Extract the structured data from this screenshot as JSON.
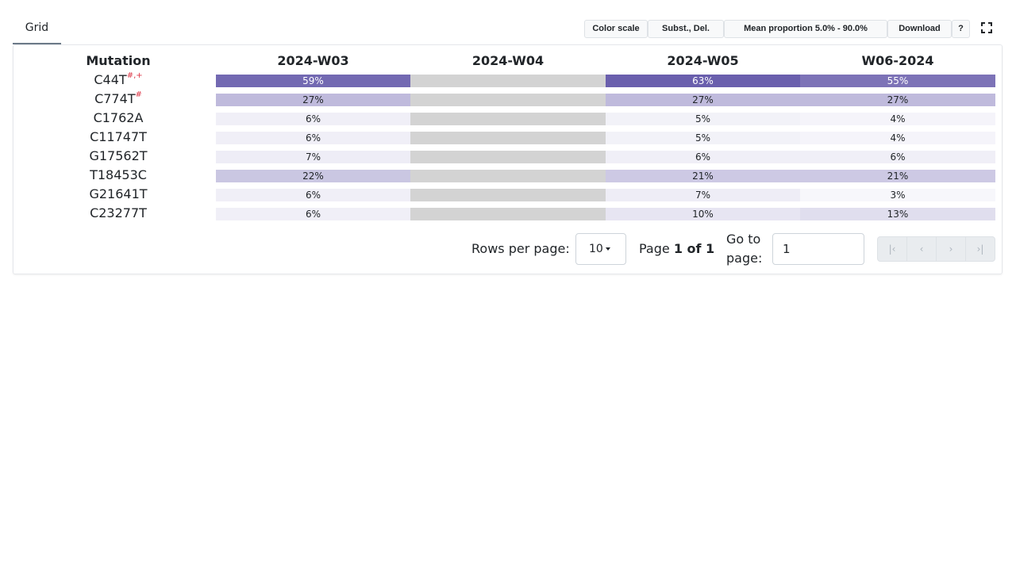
{
  "tabs": [
    {
      "label": "Grid",
      "active": true
    }
  ],
  "toolbar": {
    "color_scale": "Color scale",
    "mutation_types": "Subst., Del.",
    "mean_proportion": "Mean proportion 5.0% - 90.0%",
    "download": "Download",
    "help": "?",
    "fullscreen_icon": "fullscreen-icon"
  },
  "table": {
    "mutation_header": "Mutation",
    "columns": [
      "2024-W03",
      "2024-W04",
      "2024-W05",
      "W06-2024"
    ],
    "rows": [
      {
        "mutation": "C44T",
        "marks": "#,+",
        "cells": [
          "59%",
          null,
          "63%",
          "55%"
        ]
      },
      {
        "mutation": "C774T",
        "marks": "#",
        "cells": [
          "27%",
          null,
          "27%",
          "27%"
        ]
      },
      {
        "mutation": "C1762A",
        "marks": "",
        "cells": [
          "6%",
          null,
          "5%",
          "4%"
        ]
      },
      {
        "mutation": "C11747T",
        "marks": "",
        "cells": [
          "6%",
          null,
          "5%",
          "4%"
        ]
      },
      {
        "mutation": "G17562T",
        "marks": "",
        "cells": [
          "7%",
          null,
          "6%",
          "6%"
        ]
      },
      {
        "mutation": "T18453C",
        "marks": "",
        "cells": [
          "22%",
          null,
          "21%",
          "21%"
        ]
      },
      {
        "mutation": "G21641T",
        "marks": "",
        "cells": [
          "6%",
          null,
          "7%",
          "3%"
        ]
      },
      {
        "mutation": "C23277T",
        "marks": "",
        "cells": [
          "6%",
          null,
          "10%",
          "13%"
        ]
      }
    ]
  },
  "colors": {
    "scale_low": "#f7f7fb",
    "scale_high": "#6a5fad",
    "no_data": "#d3d3d3",
    "marks": "#dc3545"
  },
  "pagination": {
    "rows_per_page_label": "Rows per page:",
    "rows_per_page_value": "10",
    "page_prefix": "Page",
    "page_current": "1 of 1",
    "goto_label": "Go to page:",
    "goto_value": "1",
    "nav_icons": [
      "first-page-icon",
      "previous-page-icon",
      "next-page-icon",
      "last-page-icon"
    ]
  }
}
